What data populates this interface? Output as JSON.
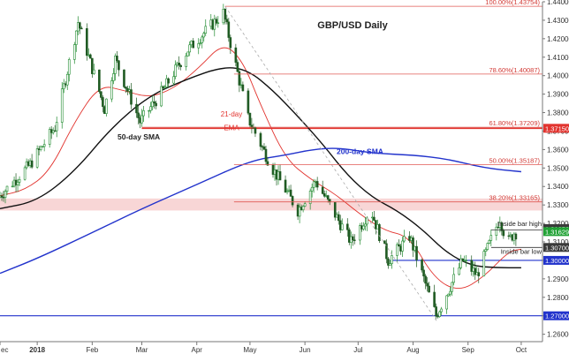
{
  "chart_data": {
    "type": "candlestick",
    "title": "GBP/USD Daily",
    "y_axis": {
      "min": 1.256,
      "max": 1.44,
      "side": "right",
      "ticks": [
        "1.44000",
        "1.43000",
        "1.42000",
        "1.41000",
        "1.40000",
        "1.39000",
        "1.38000",
        "1.37000",
        "1.36000",
        "1.35000",
        "1.34000",
        "1.33000",
        "1.32000",
        "1.31000",
        "1.30000",
        "1.29000",
        "1.28000",
        "1.27000",
        "1.26000"
      ],
      "tick_values": [
        1.44,
        1.43,
        1.42,
        1.41,
        1.4,
        1.39,
        1.38,
        1.37,
        1.36,
        1.35,
        1.34,
        1.33,
        1.32,
        1.31,
        1.3,
        1.29,
        1.28,
        1.27,
        1.26
      ]
    },
    "x_axis": {
      "start": "2017-12-11",
      "end": "2018-10-13",
      "ticks": [
        {
          "label": "ec",
          "date": "2017-12-11"
        },
        {
          "label": "2018",
          "date": "2018-01-01"
        },
        {
          "label": "Feb",
          "date": "2018-02-01"
        },
        {
          "label": "Mar",
          "date": "2018-03-01"
        },
        {
          "label": "Apr",
          "date": "2018-04-01"
        },
        {
          "label": "May",
          "date": "2018-05-01"
        },
        {
          "label": "Jun",
          "date": "2018-06-01"
        },
        {
          "label": "Jul",
          "date": "2018-07-01"
        },
        {
          "label": "Aug",
          "date": "2018-08-01"
        },
        {
          "label": "Sep",
          "date": "2018-09-01"
        },
        {
          "label": "Oct",
          "date": "2018-10-01"
        }
      ]
    },
    "fibonacci": [
      {
        "label": "100.00%(1.43754)",
        "value": 1.43754
      },
      {
        "label": "78.60%(1.40087)",
        "value": 1.40087
      },
      {
        "label": "61.80%(1.37209)",
        "value": 1.37209
      },
      {
        "label": "50.00%(1.35187)",
        "value": 1.35187
      },
      {
        "label": "38.20%(1.33165)",
        "value": 1.33165
      }
    ],
    "horizontal_levels": [
      {
        "label": "1.37150",
        "value": 1.3715,
        "color": "#e2342f"
      },
      {
        "label": "1.30000",
        "value": 1.3,
        "color": "#2233cc"
      },
      {
        "label": "1.27000",
        "value": 1.27,
        "color": "#2233cc"
      }
    ],
    "price_tags": [
      {
        "label": "1.31650",
        "value": 1.3165,
        "color": "#3a3a3a"
      },
      {
        "label": "1.31629",
        "value": 1.31629,
        "color": "#22a236"
      },
      {
        "label": "1.30700",
        "value": 1.307,
        "color": "#3a3a3a"
      }
    ],
    "resistance_zone": {
      "from": 1.327,
      "to": 1.3335
    },
    "annotations": {
      "sma50": "50-day SMA",
      "sma200": "200-day SMA",
      "ema21_line1": "21-day",
      "ema21_line2": "EMA",
      "inside_high": "Inside bar high",
      "inside_low": "Inside bar low"
    },
    "series": [
      {
        "name": "21-day EMA",
        "color": "#e2342f",
        "points": [
          [
            "2017-12-11",
            1.335
          ],
          [
            "2017-12-25",
            1.338
          ],
          [
            "2018-01-08",
            1.348
          ],
          [
            "2018-01-22",
            1.375
          ],
          [
            "2018-02-05",
            1.395
          ],
          [
            "2018-02-19",
            1.392
          ],
          [
            "2018-03-05",
            1.388
          ],
          [
            "2018-03-19",
            1.393
          ],
          [
            "2018-04-02",
            1.404
          ],
          [
            "2018-04-16",
            1.418
          ],
          [
            "2018-04-27",
            1.408
          ],
          [
            "2018-05-07",
            1.384
          ],
          [
            "2018-05-21",
            1.355
          ],
          [
            "2018-06-04",
            1.344
          ],
          [
            "2018-06-18",
            1.336
          ],
          [
            "2018-07-02",
            1.325
          ],
          [
            "2018-07-16",
            1.316
          ],
          [
            "2018-07-30",
            1.313
          ],
          [
            "2018-08-13",
            1.29
          ],
          [
            "2018-08-27",
            1.283
          ],
          [
            "2018-09-10",
            1.291
          ],
          [
            "2018-09-24",
            1.305
          ],
          [
            "2018-10-01",
            1.306
          ]
        ]
      },
      {
        "name": "50-day SMA",
        "color": "#111111",
        "points": [
          [
            "2017-12-11",
            1.328
          ],
          [
            "2018-01-01",
            1.332
          ],
          [
            "2018-01-22",
            1.348
          ],
          [
            "2018-02-12",
            1.372
          ],
          [
            "2018-03-05",
            1.389
          ],
          [
            "2018-03-26",
            1.398
          ],
          [
            "2018-04-16",
            1.405
          ],
          [
            "2018-04-30",
            1.403
          ],
          [
            "2018-05-14",
            1.392
          ],
          [
            "2018-05-28",
            1.378
          ],
          [
            "2018-06-11",
            1.363
          ],
          [
            "2018-06-25",
            1.346
          ],
          [
            "2018-07-09",
            1.334
          ],
          [
            "2018-07-23",
            1.327
          ],
          [
            "2018-08-06",
            1.317
          ],
          [
            "2018-08-20",
            1.304
          ],
          [
            "2018-09-03",
            1.297
          ],
          [
            "2018-09-17",
            1.296
          ],
          [
            "2018-10-01",
            1.296
          ]
        ]
      },
      {
        "name": "200-day SMA",
        "color": "#2233cc",
        "points": [
          [
            "2017-12-11",
            1.293
          ],
          [
            "2018-01-01",
            1.301
          ],
          [
            "2018-02-01",
            1.315
          ],
          [
            "2018-03-01",
            1.328
          ],
          [
            "2018-04-01",
            1.341
          ],
          [
            "2018-05-01",
            1.354
          ],
          [
            "2018-05-21",
            1.357
          ],
          [
            "2018-06-05",
            1.36
          ],
          [
            "2018-06-20",
            1.361
          ],
          [
            "2018-07-09",
            1.358
          ],
          [
            "2018-08-01",
            1.357
          ],
          [
            "2018-08-20",
            1.355
          ],
          [
            "2018-09-10",
            1.35
          ],
          [
            "2018-10-01",
            1.348
          ]
        ]
      }
    ],
    "candles_anchor": [
      [
        "2017-12-11",
        1.334
      ],
      [
        "2017-12-29",
        1.352
      ],
      [
        "2018-01-12",
        1.372
      ],
      [
        "2018-01-25",
        1.429
      ],
      [
        "2018-02-09",
        1.382
      ],
      [
        "2018-02-15",
        1.409
      ],
      [
        "2018-03-01",
        1.375
      ],
      [
        "2018-03-14",
        1.392
      ],
      [
        "2018-03-28",
        1.414
      ],
      [
        "2018-04-17",
        1.434
      ],
      [
        "2018-05-01",
        1.377
      ],
      [
        "2018-05-14",
        1.351
      ],
      [
        "2018-05-29",
        1.327
      ],
      [
        "2018-06-08",
        1.343
      ],
      [
        "2018-06-28",
        1.31
      ],
      [
        "2018-07-09",
        1.328
      ],
      [
        "2018-07-19",
        1.3
      ],
      [
        "2018-07-31",
        1.313
      ],
      [
        "2018-08-15",
        1.27
      ],
      [
        "2018-08-30",
        1.3
      ],
      [
        "2018-09-07",
        1.292
      ],
      [
        "2018-09-20",
        1.323
      ],
      [
        "2018-09-24",
        1.309
      ],
      [
        "2018-09-28",
        1.315
      ]
    ]
  },
  "colors": {
    "bull": "#1f8a2e",
    "bear": "#1f5a22",
    "text": "#222222"
  }
}
